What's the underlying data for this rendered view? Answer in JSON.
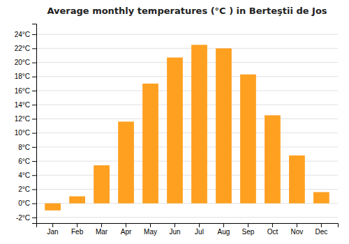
{
  "chart_data": {
    "type": "bar",
    "title": "Average monthly temperatures (°C ) in Berteştii de Jos",
    "categories": [
      "Jan",
      "Feb",
      "Mar",
      "Apr",
      "May",
      "Jun",
      "Jul",
      "Aug",
      "Sep",
      "Oct",
      "Nov",
      "Dec"
    ],
    "values": [
      -1.0,
      1.0,
      5.4,
      11.6,
      17.0,
      20.7,
      22.5,
      22.0,
      18.3,
      12.5,
      6.8,
      1.6
    ],
    "color": "#FFA020",
    "ylim": [
      -2.8,
      25.5
    ],
    "yticks": [
      {
        "value": -2,
        "label": "-2°C"
      },
      {
        "value": 0,
        "label": "0°C"
      },
      {
        "value": 2,
        "label": "2°C"
      },
      {
        "value": 4,
        "label": "4°C"
      },
      {
        "value": 6,
        "label": "6°C"
      },
      {
        "value": 8,
        "label": "8°C"
      },
      {
        "value": 10,
        "label": "10°C"
      },
      {
        "value": 12,
        "label": "12°C"
      },
      {
        "value": 14,
        "label": "14°C"
      },
      {
        "value": 16,
        "label": "16°C"
      },
      {
        "value": 18,
        "label": "18°C"
      },
      {
        "value": 20,
        "label": "20°C"
      },
      {
        "value": 22,
        "label": "22°C"
      },
      {
        "value": 24,
        "label": "24°C"
      }
    ],
    "grid": true
  }
}
